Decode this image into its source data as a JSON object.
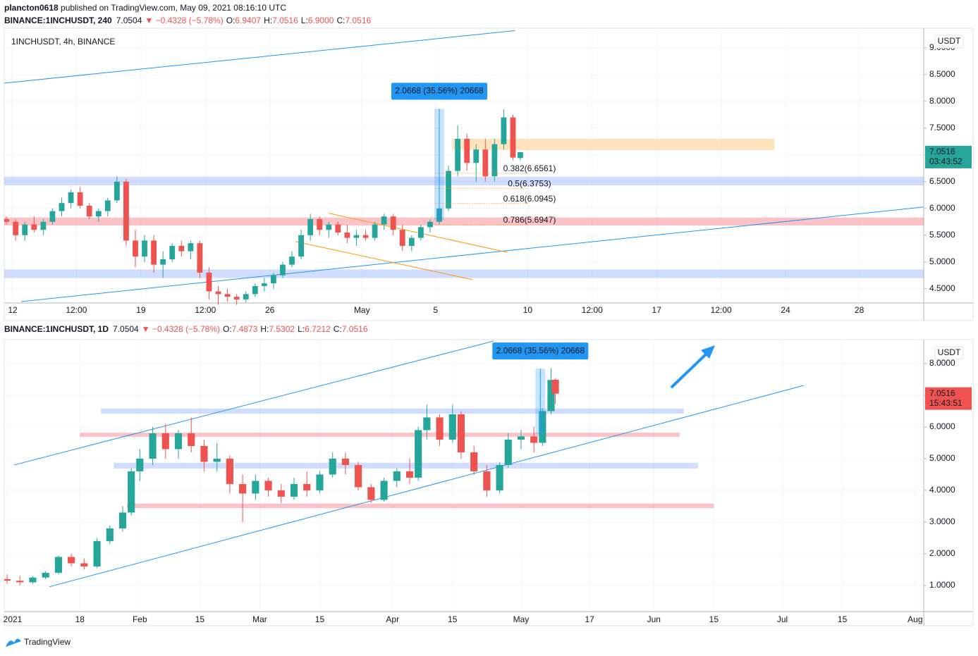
{
  "header": {
    "author": "plancton0618",
    "published": " published on TradingView.com, May 09, 2021 08:16:10 UTC"
  },
  "footer": {
    "brand": "TradingView"
  },
  "chart_data": [
    {
      "type": "candlestick",
      "legend": {
        "symbol": "BINANCE:1INCHUSDT, 240",
        "last": "7.0504",
        "change": "▼ −0.4328 (−5.78%)",
        "ohlc": [
          {
            "key": "O:",
            "value": "6.9407"
          },
          {
            "key": "H:",
            "value": "7.0516"
          },
          {
            "key": "L:",
            "value": "6.9000"
          },
          {
            "key": "C:",
            "value": "7.0516"
          }
        ]
      },
      "title": "1INCHUSDT, 4h, BINANCE",
      "currency": "USDT",
      "up_color": "#26a69a",
      "down_color": "#ef5350",
      "xlim": [
        -0.42,
        49.5
      ],
      "ylim": [
        4.26,
        9.34
      ],
      "xticks": [
        {
          "value": 0,
          "label": "12"
        },
        {
          "value": 3.5,
          "label": "12:00"
        },
        {
          "value": 7,
          "label": "19"
        },
        {
          "value": 10.5,
          "label": "12:00"
        },
        {
          "value": 14,
          "label": "26"
        },
        {
          "value": 19,
          "label": "May"
        },
        {
          "value": 23,
          "label": "5"
        },
        {
          "value": 28,
          "label": "10"
        },
        {
          "value": 31.5,
          "label": "12:00"
        },
        {
          "value": 35,
          "label": "17"
        },
        {
          "value": 38.5,
          "label": "12:00"
        },
        {
          "value": 42,
          "label": "24"
        },
        {
          "value": 46,
          "label": "28"
        }
      ],
      "yticks": [
        {
          "value": 9,
          "label": "9.0000"
        },
        {
          "value": 8.5,
          "label": "8.5000"
        },
        {
          "value": 8,
          "label": "8.0000"
        },
        {
          "value": 7.5,
          "label": "7.5000"
        },
        {
          "value": 7,
          "label": "7.0000"
        },
        {
          "value": 6.5,
          "label": "6.5000"
        },
        {
          "value": 6,
          "label": "6.0000"
        },
        {
          "value": 5.5,
          "label": "5.5000"
        },
        {
          "value": 5,
          "label": "5.0000"
        },
        {
          "value": 4.5,
          "label": "4.5000"
        }
      ],
      "zones": [
        {
          "from": 7.09,
          "to": 7.3,
          "x": [
            23.9,
            41.4
          ],
          "color": "rgba(255,167,38,0.3)"
        },
        {
          "from": 6.43,
          "to": 6.59,
          "color": "rgba(41,98,255,0.22)"
        },
        {
          "from": 5.68,
          "to": 5.83,
          "color": "rgba(242,54,69,0.3)"
        },
        {
          "from": 4.7,
          "to": 4.86,
          "color": "rgba(41,98,255,0.22)"
        }
      ],
      "lines": [
        {
          "points": [
            [
              -0.42,
              8.34
            ],
            [
              27.3,
              9.32
            ]
          ],
          "color": "#2196f3"
        },
        {
          "points": [
            [
              0.5,
              4.26
            ],
            [
              49.6,
              6.03
            ]
          ],
          "color": "#2196f3"
        },
        {
          "points": [
            [
              17.2,
              5.91
            ],
            [
              26.9,
              5.18
            ]
          ],
          "color": "#ff9800"
        },
        {
          "points": [
            [
              15.4,
              5.38
            ],
            [
              25.0,
              4.67
            ]
          ],
          "color": "#ff9800"
        }
      ],
      "measure": {
        "label": "2.0668 (35.56%) 20668",
        "x": 23.2,
        "from": 5.78,
        "to": 7.86
      },
      "fib": [
        {
          "label": "0.382(6.6561)",
          "value": 6.6561
        },
        {
          "label": "0.5(6.3753)",
          "value": 6.3753
        },
        {
          "label": "0.618(6.0945)",
          "value": 6.0945
        },
        {
          "label": "0.786(5.6947)",
          "value": 5.6947
        }
      ],
      "price_tag": {
        "value": 7.0516,
        "label": "7.0516",
        "countdown": "03:43:52"
      },
      "candles": [
        [
          -0.3,
          5.8,
          5.85,
          5.7,
          5.75
        ],
        [
          0.2,
          5.75,
          5.8,
          5.4,
          5.5
        ],
        [
          0.7,
          5.5,
          5.75,
          5.4,
          5.7
        ],
        [
          1.2,
          5.7,
          5.85,
          5.55,
          5.6
        ],
        [
          1.7,
          5.6,
          5.8,
          5.5,
          5.75
        ],
        [
          2.2,
          5.75,
          6.0,
          5.7,
          5.95
        ],
        [
          2.7,
          5.95,
          6.2,
          5.85,
          6.1
        ],
        [
          3.2,
          6.1,
          6.35,
          6.0,
          6.3
        ],
        [
          3.7,
          6.3,
          6.4,
          6.0,
          6.05
        ],
        [
          4.2,
          6.05,
          6.1,
          5.8,
          5.85
        ],
        [
          4.7,
          5.85,
          6.0,
          5.75,
          5.95
        ],
        [
          5.2,
          5.95,
          6.2,
          5.85,
          6.15
        ],
        [
          5.7,
          6.15,
          6.6,
          6.1,
          6.5
        ],
        [
          6.2,
          6.5,
          6.55,
          5.3,
          5.4
        ],
        [
          6.7,
          5.4,
          5.6,
          4.9,
          5.1
        ],
        [
          7.2,
          5.1,
          5.5,
          5.0,
          5.4
        ],
        [
          7.7,
          5.4,
          5.5,
          4.8,
          4.95
        ],
        [
          8.2,
          4.95,
          5.2,
          4.7,
          5.05
        ],
        [
          8.7,
          5.05,
          5.35,
          5.0,
          5.3
        ],
        [
          9.2,
          5.3,
          5.4,
          5.1,
          5.2
        ],
        [
          9.7,
          5.2,
          5.4,
          5.05,
          5.35
        ],
        [
          10.2,
          5.35,
          5.4,
          4.7,
          4.8
        ],
        [
          10.7,
          4.8,
          4.9,
          4.3,
          4.45
        ],
        [
          11.2,
          4.45,
          4.55,
          4.2,
          4.4
        ],
        [
          11.7,
          4.4,
          4.5,
          4.25,
          4.35
        ],
        [
          12.2,
          4.35,
          4.4,
          4.2,
          4.3
        ],
        [
          12.7,
          4.3,
          4.45,
          4.25,
          4.4
        ],
        [
          13.2,
          4.4,
          4.6,
          4.35,
          4.55
        ],
        [
          13.7,
          4.55,
          4.7,
          4.45,
          4.6
        ],
        [
          14.2,
          4.6,
          4.8,
          4.5,
          4.75
        ],
        [
          14.7,
          4.75,
          5.0,
          4.7,
          4.95
        ],
        [
          15.2,
          4.95,
          5.2,
          4.9,
          5.1
        ],
        [
          15.7,
          5.1,
          5.6,
          5.05,
          5.5
        ],
        [
          16.2,
          5.5,
          5.9,
          5.4,
          5.8
        ],
        [
          16.7,
          5.8,
          5.85,
          5.5,
          5.6
        ],
        [
          17.2,
          5.6,
          5.75,
          5.45,
          5.7
        ],
        [
          17.7,
          5.7,
          5.75,
          5.5,
          5.55
        ],
        [
          18.2,
          5.55,
          5.7,
          5.35,
          5.45
        ],
        [
          18.7,
          5.45,
          5.6,
          5.3,
          5.5
        ],
        [
          19.2,
          5.5,
          5.6,
          5.4,
          5.45
        ],
        [
          19.7,
          5.45,
          5.75,
          5.4,
          5.7
        ],
        [
          20.2,
          5.7,
          5.9,
          5.6,
          5.85
        ],
        [
          20.7,
          5.85,
          5.9,
          5.5,
          5.6
        ],
        [
          21.2,
          5.6,
          5.7,
          5.2,
          5.3
        ],
        [
          21.7,
          5.3,
          5.5,
          5.2,
          5.45
        ],
        [
          22.2,
          5.45,
          5.7,
          5.4,
          5.65
        ],
        [
          22.7,
          5.65,
          5.8,
          5.55,
          5.75
        ],
        [
          23.2,
          5.75,
          6.1,
          5.7,
          6.0
        ],
        [
          23.7,
          6.0,
          6.8,
          5.95,
          6.7
        ],
        [
          24.2,
          6.7,
          7.55,
          6.6,
          7.3
        ],
        [
          24.7,
          7.3,
          7.4,
          6.7,
          6.85
        ],
        [
          25.2,
          6.85,
          7.2,
          6.5,
          7.1
        ],
        [
          25.7,
          7.1,
          7.3,
          6.5,
          6.6
        ],
        [
          26.2,
          6.6,
          7.3,
          6.5,
          7.2
        ],
        [
          26.7,
          7.2,
          7.85,
          7.1,
          7.7
        ],
        [
          27.2,
          7.7,
          7.75,
          6.9,
          6.95
        ],
        [
          27.6,
          6.9407,
          7.0516,
          6.9,
          7.0516
        ]
      ]
    },
    {
      "type": "candlestick",
      "legend": {
        "symbol": "BINANCE:1INCHUSDT, 1D",
        "last": "7.0504",
        "change": "▼ −0.4328 (−5.78%)",
        "ohlc": [
          {
            "key": "O:",
            "value": "7.4873"
          },
          {
            "key": "H:",
            "value": "7.5302"
          },
          {
            "key": "L:",
            "value": "6.7212"
          },
          {
            "key": "C:",
            "value": "7.0516"
          }
        ]
      },
      "currency": "USDT",
      "up_color": "#26a69a",
      "down_color": "#ef5350",
      "xlim": [
        -0.66,
        214
      ],
      "ylim": [
        0.22,
        8.71
      ],
      "xticks": [
        {
          "value": 0,
          "label": "2021"
        },
        {
          "value": 17,
          "label": "18"
        },
        {
          "value": 31,
          "label": "Feb"
        },
        {
          "value": 45,
          "label": "15"
        },
        {
          "value": 59,
          "label": "Mar"
        },
        {
          "value": 73,
          "label": "15"
        },
        {
          "value": 90,
          "label": "Apr"
        },
        {
          "value": 104,
          "label": "15"
        },
        {
          "value": 120,
          "label": "May"
        },
        {
          "value": 136,
          "label": "17"
        },
        {
          "value": 151,
          "label": "Jun"
        },
        {
          "value": 165,
          "label": "15"
        },
        {
          "value": 181,
          "label": "Jul"
        },
        {
          "value": 195,
          "label": "15"
        },
        {
          "value": 212,
          "label": "Aug"
        }
      ],
      "yticks": [
        {
          "value": 8,
          "label": "8.0000"
        },
        {
          "value": 7,
          "label": "7.0000"
        },
        {
          "value": 6,
          "label": "6.0000"
        },
        {
          "value": 5,
          "label": "5.0000"
        },
        {
          "value": 4,
          "label": "4.0000"
        },
        {
          "value": 3,
          "label": "3.0000"
        },
        {
          "value": 2,
          "label": "2.0000"
        },
        {
          "value": 1,
          "label": "1.0000"
        }
      ],
      "zones": [
        {
          "from": 6.42,
          "to": 6.58,
          "x": [
            21.9,
            158
          ],
          "color": "rgba(41,98,255,0.22)"
        },
        {
          "from": 5.69,
          "to": 5.82,
          "x": [
            17,
            157
          ],
          "color": "rgba(242,54,69,0.3)"
        },
        {
          "from": 4.69,
          "to": 4.87,
          "x": [
            24.9,
            161.3
          ],
          "color": "rgba(41,98,255,0.22)"
        },
        {
          "from": 3.44,
          "to": 3.58,
          "x": [
            28,
            165
          ],
          "color": "rgba(242,54,69,0.3)"
        }
      ],
      "lines": [
        {
          "points": [
            [
              1.6,
              4.8
            ],
            [
              113.6,
              8.71
            ]
          ],
          "color": "#2196f3"
        },
        {
          "points": [
            [
              9.9,
              0.96
            ],
            [
              186,
              7.31
            ]
          ],
          "color": "#2196f3"
        }
      ],
      "measure": {
        "label": "2.0668 (35.56%) 20668",
        "x": 124.5,
        "from": 5.78,
        "to": 7.84
      },
      "price_tag": {
        "value": 7.0516,
        "label": "7.0516",
        "countdown": "15:43:51"
      },
      "candles": [
        [
          0,
          1.2,
          1.35,
          1.05,
          1.15
        ],
        [
          3,
          1.15,
          1.3,
          1.0,
          1.1
        ],
        [
          6,
          1.1,
          1.3,
          1.05,
          1.25
        ],
        [
          9,
          1.25,
          1.45,
          1.2,
          1.4
        ],
        [
          12,
          1.4,
          1.95,
          1.35,
          1.9
        ],
        [
          15,
          1.9,
          2.0,
          1.6,
          1.7
        ],
        [
          18,
          1.7,
          1.85,
          1.5,
          1.6
        ],
        [
          21,
          1.6,
          2.5,
          1.55,
          2.4
        ],
        [
          24,
          2.4,
          2.9,
          2.3,
          2.8
        ],
        [
          27,
          2.8,
          3.5,
          2.7,
          3.3
        ],
        [
          29,
          3.3,
          4.7,
          3.2,
          4.6
        ],
        [
          31,
          4.6,
          5.3,
          4.3,
          5.0
        ],
        [
          34,
          5.0,
          6.0,
          4.8,
          5.8
        ],
        [
          37,
          5.8,
          6.1,
          5.0,
          5.3
        ],
        [
          40,
          5.3,
          5.9,
          5.0,
          5.8
        ],
        [
          43,
          5.8,
          6.3,
          5.2,
          5.4
        ],
        [
          46,
          5.4,
          5.6,
          4.6,
          4.9
        ],
        [
          49,
          4.9,
          5.5,
          4.6,
          5.0
        ],
        [
          52,
          5.0,
          5.1,
          3.9,
          4.2
        ],
        [
          55,
          4.2,
          4.5,
          3.0,
          3.9
        ],
        [
          58,
          3.9,
          4.5,
          3.7,
          4.3
        ],
        [
          61,
          4.3,
          4.4,
          3.8,
          4.0
        ],
        [
          64,
          4.0,
          4.2,
          3.6,
          3.8
        ],
        [
          67,
          3.8,
          4.4,
          3.7,
          4.2
        ],
        [
          70,
          4.2,
          4.6,
          3.8,
          4.0
        ],
        [
          73,
          4.0,
          4.6,
          3.9,
          4.5
        ],
        [
          76,
          4.5,
          5.2,
          4.4,
          5.0
        ],
        [
          79,
          5.0,
          5.2,
          4.5,
          4.8
        ],
        [
          82,
          4.8,
          4.9,
          4.0,
          4.1
        ],
        [
          85,
          4.1,
          4.2,
          3.6,
          3.7
        ],
        [
          88,
          3.7,
          4.4,
          3.65,
          4.3
        ],
        [
          91,
          4.3,
          4.7,
          4.1,
          4.6
        ],
        [
          94,
          4.6,
          5.0,
          4.2,
          4.4
        ],
        [
          96,
          4.4,
          6.0,
          4.3,
          5.9
        ],
        [
          98,
          5.9,
          6.7,
          5.6,
          6.3
        ],
        [
          101,
          6.3,
          6.4,
          5.4,
          5.6
        ],
        [
          104,
          5.6,
          6.7,
          5.5,
          6.4
        ],
        [
          106,
          6.4,
          6.5,
          5.0,
          5.2
        ],
        [
          109,
          5.2,
          5.4,
          4.5,
          4.6
        ],
        [
          112,
          4.6,
          4.8,
          3.8,
          4.0
        ],
        [
          115,
          4.0,
          4.9,
          3.9,
          4.8
        ],
        [
          117,
          4.8,
          5.8,
          4.7,
          5.6
        ],
        [
          120,
          5.6,
          5.9,
          5.3,
          5.7
        ],
        [
          123,
          5.7,
          6.0,
          5.2,
          5.5
        ],
        [
          125,
          5.5,
          6.6,
          5.4,
          6.5
        ],
        [
          127,
          6.5,
          7.85,
          6.4,
          7.48
        ],
        [
          128,
          7.4873,
          7.5302,
          6.7212,
          7.0516
        ]
      ]
    }
  ]
}
